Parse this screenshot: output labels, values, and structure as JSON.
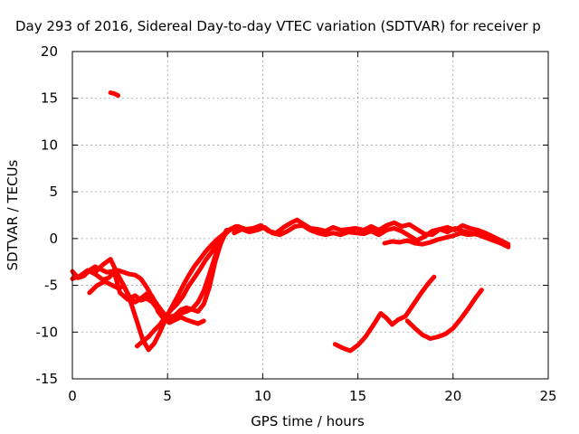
{
  "chart_data": {
    "type": "line",
    "title": "Day 293 of 2016, Sidereal Day-to-day VTEC variation (SDTVAR) for receiver p",
    "xlabel": "GPS time / hours",
    "ylabel": "SDTVAR / TECUs",
    "xlim": [
      0,
      25
    ],
    "ylim": [
      -15,
      20
    ],
    "xticks": [
      "0",
      "5",
      "10",
      "15",
      "20",
      "25"
    ],
    "yticks": [
      "-15",
      "-10",
      "-5",
      "0",
      "5",
      "10",
      "15",
      "20"
    ],
    "grid": true,
    "color": "#ff0000",
    "series": [
      {
        "x": [
          2.0,
          2.2,
          2.4
        ],
        "y": [
          15.6,
          15.5,
          15.3
        ]
      },
      {
        "x": [
          0.0,
          0.3,
          0.6,
          0.9,
          1.2,
          1.5,
          1.8,
          2.1,
          2.4,
          2.7,
          3.0,
          3.3,
          3.6,
          3.9,
          4.2,
          4.5,
          4.8,
          5.1,
          5.4,
          5.7,
          6.0,
          6.3,
          6.6,
          6.9,
          7.2,
          7.5,
          7.8,
          8.1,
          8.5
        ],
        "y": [
          -3.5,
          -4.2,
          -4.0,
          -3.4,
          -3.0,
          -3.3,
          -3.6,
          -3.5,
          -3.4,
          -3.6,
          -3.8,
          -3.9,
          -4.3,
          -5.2,
          -6.3,
          -7.2,
          -8.0,
          -8.4,
          -8.2,
          -7.6,
          -7.4,
          -7.6,
          -7.8,
          -7.0,
          -5.2,
          -2.5,
          -0.5,
          0.8,
          1.1
        ]
      },
      {
        "x": [
          0.0,
          0.4,
          0.8,
          1.2,
          1.6,
          1.9,
          2.2,
          2.5,
          2.9,
          3.3,
          3.6,
          3.9,
          4.2,
          4.5,
          4.8,
          5.1,
          5.4,
          5.7,
          6.0,
          6.3,
          6.6,
          6.9,
          7.2,
          7.5,
          7.8,
          8.1
        ],
        "y": [
          -4.3,
          -4.0,
          -3.4,
          -3.8,
          -4.4,
          -4.2,
          -3.6,
          -5.8,
          -6.5,
          -6.1,
          -6.6,
          -6.4,
          -6.8,
          -7.6,
          -8.2,
          -8.6,
          -8.3,
          -8.0,
          -7.8,
          -7.5,
          -6.8,
          -5.6,
          -3.8,
          -1.9,
          -0.2,
          0.9
        ]
      },
      {
        "x": [
          0.9,
          1.3,
          1.7,
          2.0,
          2.4,
          2.7,
          3.0,
          3.3,
          3.6,
          3.9,
          4.2,
          4.5,
          4.8,
          5.1,
          5.4,
          5.7,
          6.0,
          6.3,
          6.6,
          6.9
        ],
        "y": [
          -5.8,
          -5.0,
          -4.6,
          -4.9,
          -5.3,
          -5.1,
          -6.2,
          -6.8,
          -6.4,
          -5.9,
          -6.2,
          -7.8,
          -8.6,
          -9.0,
          -8.7,
          -8.4,
          -8.7,
          -8.9,
          -9.1,
          -8.8
        ]
      },
      {
        "x": [
          1.2,
          1.6,
          2.0,
          2.4,
          2.8,
          3.1,
          3.4,
          3.7,
          4.0,
          4.3,
          4.6,
          4.9,
          5.2,
          5.5,
          5.8,
          6.1,
          6.4,
          6.7,
          7.0,
          7.3,
          7.6,
          7.9,
          8.2,
          8.6
        ],
        "y": [
          -3.6,
          -2.8,
          -2.2,
          -3.9,
          -5.4,
          -7.0,
          -8.9,
          -10.8,
          -11.9,
          -11.2,
          -10.0,
          -8.6,
          -7.4,
          -6.3,
          -5.1,
          -4.0,
          -3.0,
          -2.2,
          -1.4,
          -0.7,
          -0.1,
          0.4,
          0.9,
          1.3
        ]
      },
      {
        "x": [
          3.4,
          3.7,
          4.0,
          4.3,
          4.6,
          4.9,
          5.2,
          5.5,
          5.8,
          6.1,
          6.4,
          6.7,
          7.0,
          7.3,
          7.6,
          7.9,
          8.2,
          8.5
        ],
        "y": [
          -11.5,
          -11.0,
          -10.5,
          -9.8,
          -9.2,
          -8.3,
          -7.6,
          -7.0,
          -6.2,
          -5.1,
          -4.2,
          -3.3,
          -2.3,
          -1.5,
          -0.6,
          0.2,
          0.8,
          1.2
        ]
      },
      {
        "x": [
          8.3,
          8.7,
          9.1,
          9.5,
          9.9,
          10.3,
          10.7,
          11.1,
          11.5,
          11.8,
          12.1,
          12.5,
          12.9,
          13.3,
          13.7,
          14.1,
          14.5,
          14.9,
          15.3,
          15.7,
          16.1,
          16.5,
          16.9,
          17.3,
          17.7,
          18.1,
          18.5,
          18.9,
          19.3,
          19.7,
          20.1,
          20.5,
          20.9,
          21.3,
          21.7,
          22.1,
          22.5,
          22.9
        ],
        "y": [
          1.0,
          1.3,
          1.0,
          1.1,
          1.4,
          0.8,
          0.6,
          1.2,
          1.7,
          2.0,
          1.6,
          1.1,
          1.0,
          0.8,
          1.2,
          0.9,
          1.0,
          1.1,
          0.9,
          1.3,
          0.9,
          1.4,
          1.7,
          1.3,
          1.5,
          1.0,
          0.5,
          0.4,
          1.0,
          1.2,
          0.9,
          1.4,
          1.1,
          0.9,
          0.6,
          0.2,
          -0.2,
          -0.6
        ]
      },
      {
        "x": [
          8.5,
          8.9,
          9.3,
          9.7,
          10.1,
          10.5,
          10.9,
          11.3,
          11.7,
          12.1,
          12.5,
          12.9,
          13.3,
          13.7,
          14.1,
          14.5,
          14.9,
          15.3,
          15.7,
          16.1,
          16.5,
          16.9,
          17.3,
          17.7,
          18.1,
          18.5,
          18.9,
          19.3,
          19.7,
          20.1,
          20.5,
          20.9,
          21.3,
          21.7,
          22.1,
          22.5,
          22.9
        ],
        "y": [
          0.6,
          1.0,
          0.7,
          0.9,
          1.2,
          0.6,
          0.4,
          0.8,
          1.3,
          1.4,
          0.9,
          0.6,
          0.4,
          0.6,
          0.4,
          0.7,
          0.6,
          0.5,
          0.8,
          0.4,
          0.9,
          1.1,
          0.8,
          0.3,
          -0.2,
          0.2,
          0.8,
          1.0,
          0.7,
          1.1,
          0.8,
          0.6,
          0.4,
          0.1,
          -0.2,
          -0.5,
          -0.9
        ]
      },
      {
        "x": [
          16.4,
          16.8,
          17.2,
          17.6,
          18.0,
          18.4,
          18.8,
          19.2,
          19.6,
          20.0,
          20.4,
          20.8,
          21.2,
          21.6,
          22.0,
          22.4,
          22.9
        ],
        "y": [
          -0.5,
          -0.3,
          -0.4,
          -0.2,
          -0.5,
          -0.6,
          -0.4,
          -0.1,
          0.1,
          0.3,
          0.6,
          0.4,
          0.5,
          0.3,
          0.0,
          -0.3,
          -0.8
        ]
      },
      {
        "x": [
          13.8,
          14.2,
          14.6,
          15.0,
          15.4,
          15.8,
          16.2,
          16.5,
          16.8,
          17.1,
          17.5,
          17.9,
          18.3,
          18.7,
          19.0
        ],
        "y": [
          -11.3,
          -11.7,
          -12.0,
          -11.4,
          -10.5,
          -9.3,
          -8.0,
          -8.5,
          -9.2,
          -8.7,
          -8.3,
          -7.1,
          -5.9,
          -4.8,
          -4.1
        ]
      },
      {
        "x": [
          17.6,
          18.0,
          18.4,
          18.8,
          19.2,
          19.6,
          20.0,
          20.4,
          20.8,
          21.2,
          21.5
        ],
        "y": [
          -8.8,
          -9.6,
          -10.3,
          -10.7,
          -10.5,
          -10.2,
          -9.6,
          -8.6,
          -7.5,
          -6.3,
          -5.5
        ]
      }
    ]
  }
}
